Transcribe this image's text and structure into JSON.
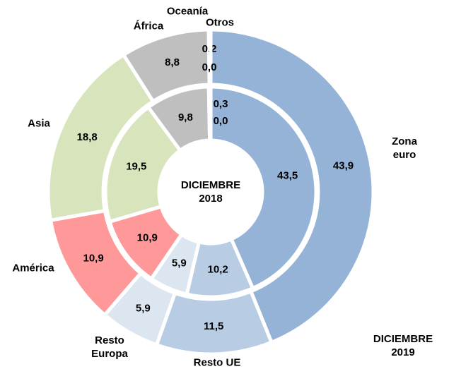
{
  "chart_data": {
    "type": "donut",
    "categories": [
      "Zona euro",
      "Resto UE",
      "Resto Europa",
      "América",
      "Asia",
      "África",
      "Oceanía",
      "Otros"
    ],
    "colors": [
      "#95b3d7",
      "#b8cce4",
      "#dce6f1",
      "#ff9999",
      "#d8e4bc",
      "#bfbfbf",
      "#bfbfbf",
      "#bfbfbf"
    ],
    "series": [
      {
        "name": "DICIEMBRE 2019",
        "values": [
          43.9,
          11.5,
          5.9,
          10.9,
          18.8,
          8.8,
          0.2,
          0.0
        ],
        "value_labels": [
          "43,9",
          "11,5",
          "5,9",
          "10,9",
          "18,8",
          "8,8",
          "0,2",
          "0,0"
        ]
      },
      {
        "name": "DICIEMBRE 2018",
        "values": [
          43.5,
          10.2,
          5.9,
          10.9,
          19.5,
          9.8,
          0.3,
          0.0
        ],
        "value_labels": [
          "43,5",
          "10,2",
          "5,9",
          "10,9",
          "19,5",
          "9,8",
          "0,3",
          "0,0"
        ]
      }
    ]
  }
}
